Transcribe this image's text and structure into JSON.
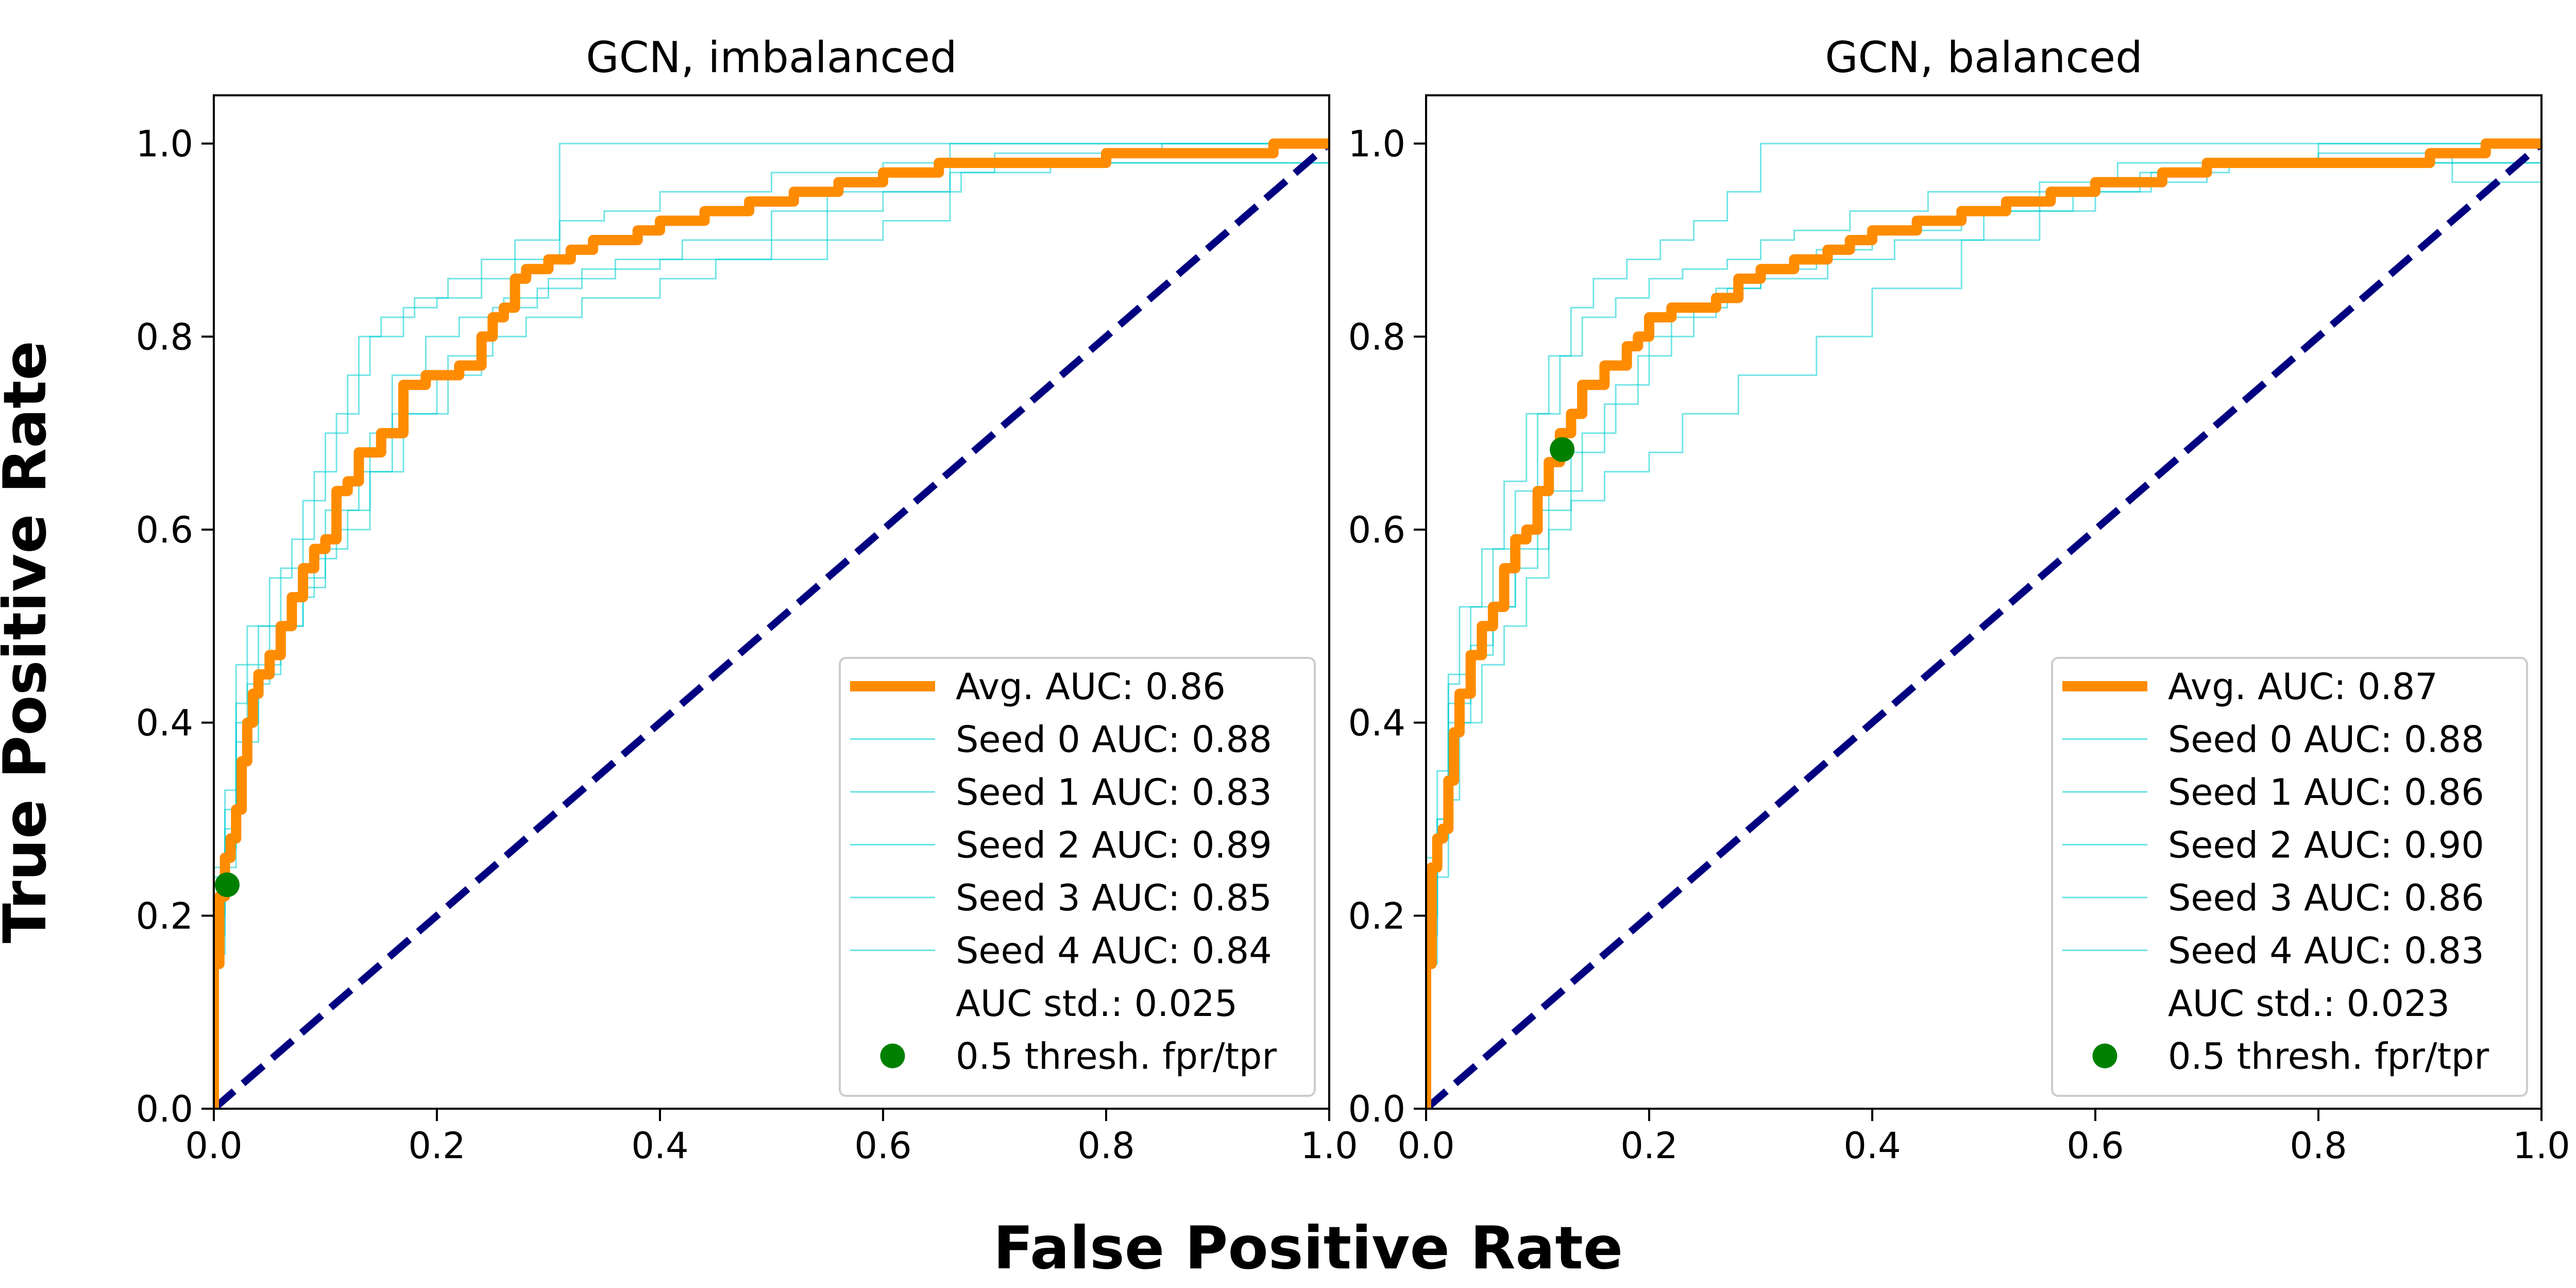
{
  "figure": {
    "xlabel": "False Positive Rate",
    "ylabel": "True Positive Rate"
  },
  "colors": {
    "avg": "#ff8c00",
    "seed": "#00ced1",
    "chance": "#000080",
    "thresh": "#008000",
    "legend_border": "#cccccc"
  },
  "chart_data": [
    {
      "type": "line",
      "title": "GCN, imbalanced",
      "xlim": [
        0,
        1
      ],
      "ylim": [
        0,
        1.05
      ],
      "xticks": [
        "0.0",
        "0.2",
        "0.4",
        "0.6",
        "0.8",
        "1.0"
      ],
      "yticks": [
        "0.0",
        "0.2",
        "0.4",
        "0.6",
        "0.8",
        "1.0"
      ],
      "grid": false,
      "legend_position": "lower-right",
      "chance_line": {
        "x": [
          0,
          1
        ],
        "y": [
          0,
          1
        ]
      },
      "series": [
        {
          "name": "Avg. AUC: 0.86",
          "role": "average",
          "x": [
            0,
            0.005,
            0.01,
            0.015,
            0.02,
            0.025,
            0.03,
            0.035,
            0.04,
            0.05,
            0.06,
            0.07,
            0.08,
            0.09,
            0.1,
            0.11,
            0.12,
            0.13,
            0.15,
            0.17,
            0.19,
            0.2,
            0.22,
            0.24,
            0.25,
            0.26,
            0.27,
            0.28,
            0.29,
            0.3,
            0.32,
            0.34,
            0.36,
            0.38,
            0.4,
            0.44,
            0.48,
            0.52,
            0.56,
            0.6,
            0.65,
            0.68,
            0.75,
            0.8,
            0.88,
            0.9,
            0.95,
            1.0
          ],
          "y": [
            0,
            0.15,
            0.22,
            0.26,
            0.28,
            0.31,
            0.36,
            0.4,
            0.43,
            0.45,
            0.47,
            0.5,
            0.53,
            0.56,
            0.58,
            0.59,
            0.64,
            0.65,
            0.68,
            0.7,
            0.75,
            0.76,
            0.76,
            0.77,
            0.8,
            0.82,
            0.83,
            0.86,
            0.87,
            0.87,
            0.88,
            0.89,
            0.9,
            0.9,
            0.91,
            0.92,
            0.93,
            0.94,
            0.95,
            0.96,
            0.97,
            0.98,
            0.98,
            0.98,
            0.99,
            0.99,
            0.99,
            1.0
          ]
        },
        {
          "name": "Seed 0 AUC: 0.88",
          "role": "seed",
          "x": [
            0,
            0.01,
            0.02,
            0.04,
            0.06,
            0.08,
            0.1,
            0.12,
            0.14,
            0.17,
            0.2,
            0.24,
            0.27,
            0.31,
            0.33,
            0.38,
            0.42,
            0.5,
            0.55,
            0.58,
            0.65,
            0.8,
            0.9,
            1.0
          ],
          "y": [
            0,
            0.25,
            0.31,
            0.46,
            0.5,
            0.56,
            0.63,
            0.7,
            0.76,
            0.8,
            0.83,
            0.84,
            0.86,
            0.88,
            1.0,
            1.0,
            1.0,
            1.0,
            1.0,
            1.0,
            1.0,
            1.0,
            1.0,
            1.0
          ]
        },
        {
          "name": "Seed 1 AUC: 0.83",
          "role": "seed",
          "x": [
            0,
            0.01,
            0.02,
            0.04,
            0.06,
            0.08,
            0.1,
            0.13,
            0.16,
            0.2,
            0.24,
            0.28,
            0.33,
            0.4,
            0.45,
            0.55,
            0.66,
            0.7,
            0.8,
            1.0
          ],
          "y": [
            0,
            0.2,
            0.27,
            0.38,
            0.45,
            0.5,
            0.55,
            0.62,
            0.66,
            0.72,
            0.76,
            0.8,
            0.82,
            0.84,
            0.86,
            0.88,
            0.95,
            0.97,
            0.98,
            0.98
          ]
        },
        {
          "name": "Seed 2 AUC: 0.89",
          "role": "seed",
          "x": [
            0,
            0.01,
            0.02,
            0.03,
            0.05,
            0.07,
            0.09,
            0.11,
            0.13,
            0.15,
            0.18,
            0.21,
            0.24,
            0.27,
            0.31,
            0.35,
            0.4,
            0.5,
            0.6,
            0.7,
            0.85,
            0.95,
            1.0
          ],
          "y": [
            0,
            0.24,
            0.33,
            0.42,
            0.5,
            0.55,
            0.59,
            0.66,
            0.72,
            0.8,
            0.82,
            0.84,
            0.86,
            0.88,
            0.9,
            0.92,
            0.93,
            0.95,
            0.97,
            0.98,
            0.99,
            1.0,
            1.0
          ]
        },
        {
          "name": "Seed 3 AUC: 0.85",
          "role": "seed",
          "x": [
            0,
            0.01,
            0.02,
            0.04,
            0.06,
            0.08,
            0.1,
            0.12,
            0.14,
            0.16,
            0.19,
            0.22,
            0.26,
            0.3,
            0.36,
            0.42,
            0.5,
            0.6,
            0.67,
            0.75,
            0.85,
            1.0
          ],
          "y": [
            0,
            0.18,
            0.29,
            0.4,
            0.46,
            0.5,
            0.54,
            0.58,
            0.62,
            0.7,
            0.76,
            0.8,
            0.82,
            0.84,
            0.86,
            0.88,
            0.9,
            0.93,
            0.95,
            0.97,
            0.98,
            0.98
          ]
        },
        {
          "name": "Seed 4 AUC: 0.84",
          "role": "seed",
          "x": [
            0,
            0.01,
            0.02,
            0.03,
            0.05,
            0.07,
            0.09,
            0.11,
            0.14,
            0.17,
            0.21,
            0.25,
            0.29,
            0.33,
            0.4,
            0.5,
            0.6,
            0.66,
            0.68,
            0.8,
            1.0
          ],
          "y": [
            0,
            0.16,
            0.25,
            0.36,
            0.44,
            0.5,
            0.53,
            0.57,
            0.6,
            0.66,
            0.72,
            0.78,
            0.83,
            0.85,
            0.87,
            0.88,
            0.9,
            0.92,
            1.0,
            1.0,
            1.0
          ]
        }
      ],
      "threshold_point": {
        "name": "0.5 thresh. fpr/tpr",
        "x": 0.012,
        "y": 0.232
      },
      "annotation": "AUC std.: 0.025"
    },
    {
      "type": "line",
      "title": "GCN, balanced",
      "xlim": [
        0,
        1
      ],
      "ylim": [
        0,
        1.05
      ],
      "xticks": [
        "0.0",
        "0.2",
        "0.4",
        "0.6",
        "0.8",
        "1.0"
      ],
      "yticks": [
        "0.0",
        "0.2",
        "0.4",
        "0.6",
        "0.8",
        "1.0"
      ],
      "grid": false,
      "legend_position": "lower-right",
      "chance_line": {
        "x": [
          0,
          1
        ],
        "y": [
          0,
          1
        ]
      },
      "series": [
        {
          "name": "Avg. AUC: 0.87",
          "role": "average",
          "x": [
            0,
            0.005,
            0.01,
            0.015,
            0.02,
            0.025,
            0.03,
            0.04,
            0.05,
            0.06,
            0.07,
            0.08,
            0.09,
            0.1,
            0.11,
            0.12,
            0.13,
            0.14,
            0.15,
            0.16,
            0.18,
            0.19,
            0.2,
            0.22,
            0.24,
            0.26,
            0.28,
            0.3,
            0.33,
            0.36,
            0.38,
            0.4,
            0.44,
            0.48,
            0.52,
            0.56,
            0.6,
            0.66,
            0.7,
            0.75,
            0.8,
            0.9,
            0.95,
            1.0
          ],
          "y": [
            0,
            0.15,
            0.25,
            0.28,
            0.29,
            0.34,
            0.39,
            0.43,
            0.47,
            0.5,
            0.52,
            0.56,
            0.59,
            0.6,
            0.64,
            0.67,
            0.7,
            0.72,
            0.75,
            0.75,
            0.77,
            0.79,
            0.8,
            0.82,
            0.83,
            0.83,
            0.84,
            0.86,
            0.87,
            0.88,
            0.89,
            0.9,
            0.91,
            0.92,
            0.93,
            0.94,
            0.95,
            0.96,
            0.97,
            0.98,
            0.98,
            0.98,
            0.99,
            1.0
          ]
        },
        {
          "name": "Seed 0 AUC: 0.88",
          "role": "seed",
          "x": [
            0,
            0.01,
            0.02,
            0.04,
            0.06,
            0.08,
            0.1,
            0.12,
            0.14,
            0.17,
            0.2,
            0.23,
            0.27,
            0.3,
            0.33,
            0.38,
            0.45,
            0.55,
            0.62,
            0.8,
            1.0
          ],
          "y": [
            0,
            0.2,
            0.3,
            0.45,
            0.52,
            0.58,
            0.64,
            0.72,
            0.78,
            0.82,
            0.84,
            0.86,
            0.87,
            0.88,
            0.9,
            0.91,
            0.93,
            0.95,
            0.96,
            0.98,
            1.0
          ]
        },
        {
          "name": "Seed 1 AUC: 0.86",
          "role": "seed",
          "x": [
            0,
            0.01,
            0.02,
            0.04,
            0.06,
            0.08,
            0.11,
            0.14,
            0.17,
            0.2,
            0.24,
            0.27,
            0.3,
            0.36,
            0.42,
            0.5,
            0.58,
            0.65,
            0.72,
            0.85,
            1.0
          ],
          "y": [
            0,
            0.18,
            0.28,
            0.4,
            0.47,
            0.52,
            0.58,
            0.64,
            0.7,
            0.75,
            0.8,
            0.83,
            0.85,
            0.86,
            0.88,
            0.9,
            0.93,
            0.95,
            0.97,
            0.98,
            0.98
          ]
        },
        {
          "name": "Seed 2 AUC: 0.90",
          "role": "seed",
          "x": [
            0,
            0.01,
            0.02,
            0.03,
            0.05,
            0.07,
            0.09,
            0.11,
            0.13,
            0.15,
            0.18,
            0.21,
            0.24,
            0.27,
            0.3,
            0.33,
            0.4,
            0.5,
            0.6,
            0.7,
            1.0
          ],
          "y": [
            0,
            0.26,
            0.35,
            0.44,
            0.52,
            0.58,
            0.65,
            0.72,
            0.78,
            0.83,
            0.86,
            0.88,
            0.9,
            0.92,
            0.95,
            1.0,
            1.0,
            1.0,
            1.0,
            1.0,
            1.0
          ]
        },
        {
          "name": "Seed 3 AUC: 0.86",
          "role": "seed",
          "x": [
            0,
            0.01,
            0.02,
            0.04,
            0.06,
            0.08,
            0.1,
            0.13,
            0.16,
            0.19,
            0.22,
            0.26,
            0.3,
            0.35,
            0.4,
            0.48,
            0.55,
            0.64,
            0.7,
            0.8,
            0.92,
            1.0
          ],
          "y": [
            0,
            0.2,
            0.3,
            0.42,
            0.48,
            0.52,
            0.56,
            0.62,
            0.68,
            0.73,
            0.78,
            0.82,
            0.85,
            0.87,
            0.89,
            0.91,
            0.93,
            0.95,
            0.97,
            0.98,
            0.99,
            0.96
          ]
        },
        {
          "name": "Seed 4 AUC: 0.83",
          "role": "seed",
          "x": [
            0,
            0.01,
            0.02,
            0.03,
            0.05,
            0.07,
            0.09,
            0.11,
            0.13,
            0.16,
            0.2,
            0.23,
            0.28,
            0.35,
            0.4,
            0.48,
            0.55,
            0.6,
            0.7,
            0.85,
            1.0
          ],
          "y": [
            0,
            0.15,
            0.24,
            0.32,
            0.4,
            0.46,
            0.5,
            0.55,
            0.6,
            0.63,
            0.66,
            0.68,
            0.72,
            0.76,
            0.8,
            0.85,
            0.9,
            0.93,
            0.96,
            0.98,
            0.98
          ]
        }
      ],
      "threshold_point": {
        "name": "0.5 thresh. fpr/tpr",
        "x": 0.122,
        "y": 0.683
      },
      "annotation": "AUC std.: 0.023"
    }
  ]
}
